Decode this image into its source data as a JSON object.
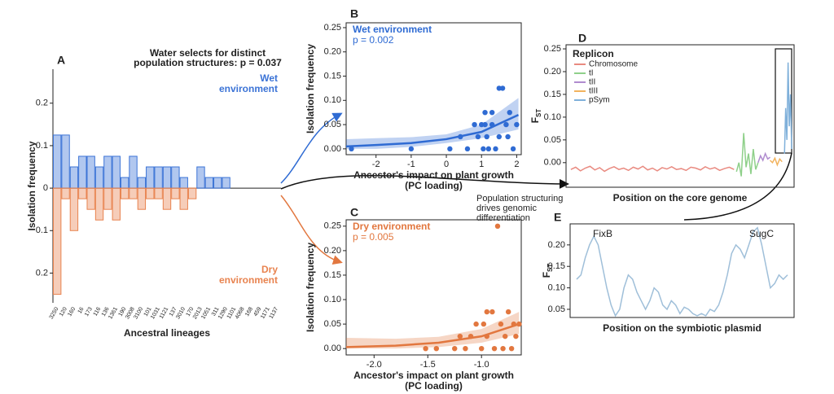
{
  "chart_data": [
    {
      "type": "bar",
      "panel": "A",
      "title": [
        "Water selects for distinct",
        "population structures: p = 0.037"
      ],
      "ylabel": "Isolation frequency",
      "xlabel": "Ancestral lineages",
      "categories": [
        "3250",
        "120",
        "160",
        "16",
        "173",
        "116",
        "136",
        "1361",
        "190",
        "3008",
        "3100",
        "101",
        "1031",
        "1121",
        "137",
        "3010",
        "170",
        "2013",
        "1051",
        "311",
        "1290",
        "1101",
        "4068",
        "168",
        "459",
        "1171",
        "1137"
      ],
      "series": [
        {
          "name": "Wet environment",
          "color": "#3b73d6",
          "values": [
            0.125,
            0.125,
            0.05,
            0.075,
            0.075,
            0.05,
            0.075,
            0.075,
            0.025,
            0.075,
            0.025,
            0.05,
            0.05,
            0.05,
            0.05,
            0.025,
            0,
            0.05,
            0.025,
            0.025,
            0.025,
            0,
            0,
            0,
            0,
            0,
            0
          ]
        },
        {
          "name": "Dry environment",
          "color": "#e8834f",
          "values": [
            -0.25,
            -0.025,
            -0.1,
            -0.025,
            -0.05,
            -0.075,
            -0.05,
            -0.075,
            -0.025,
            -0.025,
            -0.05,
            -0.025,
            -0.025,
            -0.05,
            -0.025,
            -0.05,
            -0.025,
            0,
            0,
            0,
            0,
            0,
            0,
            0,
            0,
            0,
            0
          ]
        }
      ],
      "ylim": [
        -0.27,
        0.28
      ],
      "yticks": [
        {
          "value": -0.2,
          "label": "0.2"
        },
        {
          "value": -0.1,
          "label": "0.1"
        },
        0,
        0.1,
        0.2
      ]
    },
    {
      "type": "scatter",
      "panel": "B",
      "ylabel": "Isolation frequency",
      "xlabel": [
        "Ancestor's impact on plant growth",
        "(PC loading)"
      ],
      "series": [
        {
          "name": "Wet environment",
          "color": "#2f6bd3",
          "x": [
            -2.7,
            -1,
            0.1,
            0.4,
            0.6,
            0.8,
            0.9,
            1.0,
            1.05,
            1.1,
            1.15,
            1.2,
            1.3,
            1.4,
            1.5,
            1.6,
            1.5,
            1.7,
            1.8,
            1.9,
            1.75,
            1.3,
            2.0,
            1.1
          ],
          "values": [
            0,
            0,
            0,
            0.025,
            0,
            0.05,
            0.025,
            0.05,
            0,
            0.05,
            0.025,
            0,
            0.075,
            0,
            0.125,
            0.125,
            0.025,
            0.05,
            0.075,
            0,
            0.025,
            0.05,
            0.05,
            0.075
          ]
        }
      ],
      "p_value": "p = 0.002",
      "fit": {
        "x": [
          -2.85,
          -2,
          -1,
          0,
          1,
          2.05
        ],
        "values": [
          0.005,
          0.008,
          0.012,
          0.02,
          0.035,
          0.07
        ],
        "lower": [
          0,
          0,
          0.004,
          0.012,
          0.022,
          0.04
        ],
        "upper": [
          0.02,
          0.022,
          0.024,
          0.03,
          0.05,
          0.105
        ]
      },
      "xlim": [
        -2.85,
        2.13
      ],
      "ylim": [
        -0.012,
        0.26
      ],
      "xticks": [
        -2,
        -1,
        0,
        1,
        2
      ],
      "yticks": [
        {
          "value": 0,
          "label": "0.00"
        },
        0.05,
        {
          "value": 0.1,
          "label": "0.10"
        },
        0.15,
        {
          "value": 0.2,
          "label": "0.20"
        },
        0.25
      ]
    },
    {
      "type": "scatter",
      "panel": "C",
      "ylabel": "Isolation frequency",
      "xlabel": [
        "Ancestor's impact on plant growth",
        "(PC loading)"
      ],
      "series": [
        {
          "name": "Dry environment",
          "color": "#e2773f",
          "x": [
            -1.52,
            -1.42,
            -1.2,
            -1.15,
            -1.1,
            -1.05,
            -1.0,
            -0.98,
            -0.95,
            -0.9,
            -0.88,
            -0.85,
            -0.82,
            -0.8,
            -0.78,
            -0.75,
            -0.72,
            -0.7,
            -0.68,
            -0.65,
            -1.25,
            -0.95
          ],
          "values": [
            0,
            0,
            0.025,
            0,
            0.025,
            0.05,
            0,
            0.05,
            0.025,
            0.075,
            0,
            0.25,
            0.05,
            0,
            0.025,
            0.075,
            0,
            0.05,
            0.025,
            0.05,
            0,
            0.075
          ]
        }
      ],
      "p_value": "p = 0.005",
      "fit": {
        "x": [
          -2.26,
          -1.8,
          -1.4,
          -1.0,
          -0.65
        ],
        "values": [
          0.003,
          0.006,
          0.012,
          0.025,
          0.05
        ],
        "lower": [
          0,
          0,
          0.003,
          0.012,
          0.03
        ],
        "upper": [
          0.022,
          0.02,
          0.024,
          0.04,
          0.075
        ]
      },
      "xlim": [
        -2.26,
        -0.63
      ],
      "ylim": [
        -0.013,
        0.263
      ],
      "xticks": [
        {
          "value": -2,
          "label": "-2.0"
        },
        -1.5,
        {
          "value": -1,
          "label": "-1.0"
        }
      ],
      "yticks": [
        {
          "value": 0,
          "label": "0.00"
        },
        0.05,
        {
          "value": 0.1,
          "label": "0.10"
        },
        0.15,
        {
          "value": 0.2,
          "label": "0.20"
        },
        0.25
      ]
    },
    {
      "type": "line",
      "panel": "D",
      "ylabel": {
        "text": "F",
        "sub": "ST"
      },
      "xlabel": "Position on the core genome",
      "legend_title": "Replicon",
      "series": [
        {
          "name": "Chromosome",
          "color": "#e98a80",
          "x": [
            2,
            4,
            6,
            8,
            10,
            12,
            14,
            16,
            18,
            20,
            22,
            24,
            26,
            28,
            30,
            32,
            34,
            36,
            38,
            40,
            42,
            44,
            46,
            48,
            50,
            52,
            54,
            56,
            58,
            60,
            62,
            64,
            66,
            68,
            70
          ],
          "values": [
            -0.015,
            -0.01,
            -0.018,
            -0.012,
            -0.008,
            -0.016,
            -0.011,
            -0.019,
            -0.013,
            -0.009,
            -0.015,
            -0.012,
            -0.017,
            -0.01,
            -0.014,
            -0.008,
            -0.016,
            -0.012,
            -0.018,
            -0.011,
            -0.014,
            -0.009,
            -0.015,
            -0.013,
            -0.017,
            -0.01,
            -0.012,
            -0.016,
            -0.009,
            -0.014,
            -0.011,
            -0.017,
            -0.013,
            -0.01,
            -0.015
          ]
        },
        {
          "name": "tI",
          "color": "#8fd08a",
          "x": [
            71,
            72,
            73,
            74,
            75,
            76,
            77,
            78,
            79,
            80
          ],
          "values": [
            -0.02,
            0.0,
            -0.03,
            0.065,
            -0.01,
            0.02,
            -0.025,
            0.03,
            -0.015,
            0.0
          ]
        },
        {
          "name": "tII",
          "color": "#b08ccf",
          "x": [
            80,
            81,
            82,
            83,
            84,
            85
          ],
          "values": [
            0.0,
            0.015,
            0.005,
            0.02,
            0.008,
            0.012
          ]
        },
        {
          "name": "tIII",
          "color": "#f2b35e",
          "x": [
            85,
            86,
            87,
            88,
            89,
            90
          ],
          "values": [
            0.005,
            0.0,
            0.01,
            -0.005,
            0.008,
            0.002
          ]
        },
        {
          "name": "pSym",
          "color": "#7fb0da",
          "x": [
            91,
            91.5,
            92,
            92.5,
            93,
            93.5,
            94
          ],
          "values": [
            0.02,
            0.12,
            0.05,
            0.22,
            0.08,
            0.15,
            0.03
          ]
        }
      ],
      "xlim": [
        0,
        95
      ],
      "ylim": [
        -0.054,
        0.259
      ],
      "yticks": [
        {
          "value": 0,
          "label": "0.00"
        },
        0.05,
        {
          "value": 0.1,
          "label": "0.10"
        },
        0.15,
        {
          "value": 0.2,
          "label": "0.20"
        },
        0.25
      ]
    },
    {
      "type": "line",
      "panel": "E",
      "ylabel": {
        "text": "F",
        "sub": "ST"
      },
      "xlabel": "Position on the symbiotic plasmid",
      "annotations": [
        "FixB",
        "SugC"
      ],
      "series": [
        {
          "color": "#9fbfd9",
          "values": [
            0.12,
            0.13,
            0.17,
            0.2,
            0.22,
            0.2,
            0.15,
            0.1,
            0.06,
            0.035,
            0.05,
            0.1,
            0.13,
            0.12,
            0.09,
            0.07,
            0.05,
            0.07,
            0.1,
            0.09,
            0.06,
            0.05,
            0.07,
            0.06,
            0.04,
            0.055,
            0.05,
            0.04,
            0.035,
            0.04,
            0.035,
            0.05,
            0.045,
            0.06,
            0.09,
            0.13,
            0.18,
            0.2,
            0.19,
            0.17,
            0.2,
            0.23,
            0.24,
            0.2,
            0.15,
            0.1,
            0.11,
            0.13,
            0.12,
            0.13
          ]
        }
      ],
      "ylim": [
        0.031,
        0.249
      ],
      "yticks": [
        0.05,
        {
          "value": 0.1,
          "label": "0.10"
        },
        0.15,
        {
          "value": 0.2,
          "label": "0.20"
        }
      ]
    }
  ],
  "figure_note": [
    "Population structuring",
    "drives genomic",
    "differentiation"
  ]
}
